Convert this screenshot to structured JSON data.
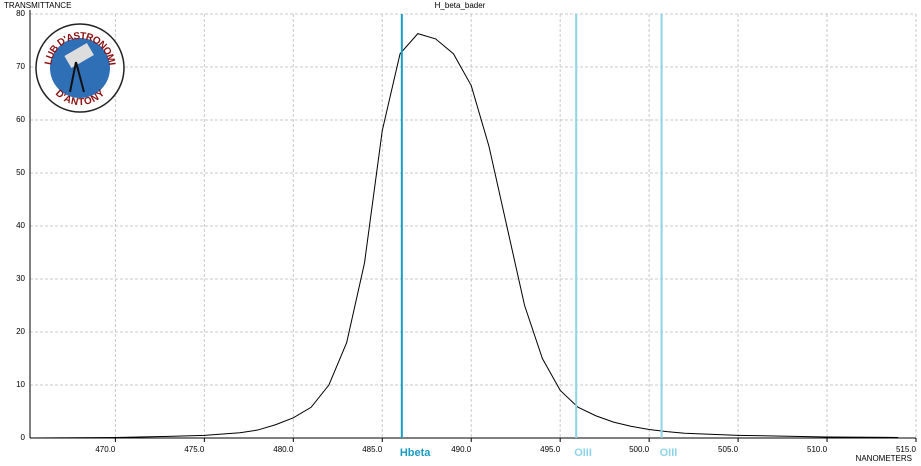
{
  "chart_data": {
    "type": "line",
    "title": "H_beta_bader",
    "y_label": "TRANSMITTANCE",
    "x_label": "NANOMETERS",
    "logo": {
      "top_text": "CLUB D'ASTRONOMIE",
      "bottom_text": "D'ANTONY"
    },
    "xlim": [
      465.2,
      515
    ],
    "ylim": [
      0,
      80
    ],
    "grid": true,
    "xticks": [
      {
        "value": 470,
        "label": "470.0"
      },
      {
        "value": 475,
        "label": "475.0"
      },
      {
        "value": 480,
        "label": "480.0"
      },
      {
        "value": 485,
        "label": "485.0"
      },
      {
        "value": 490,
        "label": "490.0"
      },
      {
        "value": 495,
        "label": "495.0"
      },
      {
        "value": 500,
        "label": "500.0"
      },
      {
        "value": 505,
        "label": "505.0"
      },
      {
        "value": 510,
        "label": "510.0"
      },
      {
        "value": 515,
        "label": "515.0"
      }
    ],
    "yticks": [
      0,
      10,
      20,
      30,
      40,
      50,
      60,
      70,
      80
    ],
    "x": [
      465.2,
      470,
      473,
      475,
      477,
      478,
      479,
      480,
      481,
      482,
      483,
      484,
      485,
      486,
      487,
      488,
      489,
      490,
      491,
      492,
      493,
      494,
      495,
      496,
      497,
      498,
      499,
      500,
      501,
      502,
      505,
      510,
      514
    ],
    "series": [
      {
        "color": "#000000",
        "values": [
          0,
          0.1,
          0.3,
          0.5,
          1,
          1.5,
          2.5,
          3.8,
          5.8,
          10,
          18,
          33,
          58,
          72.5,
          76.3,
          75.3,
          72.5,
          66.5,
          55,
          40,
          25,
          15,
          9,
          5.8,
          4.2,
          3,
          2.2,
          1.6,
          1.2,
          0.9,
          0.5,
          0.2,
          0.1
        ]
      }
    ],
    "vlines": [
      {
        "name": "Hbeta",
        "x": 486.1,
        "color": "#1a9cc4"
      },
      {
        "name": "OIII",
        "x": 495.9,
        "color": "#8fd3e8"
      },
      {
        "name": "OIII",
        "x": 500.7,
        "color": "#8fd3e8"
      }
    ]
  }
}
